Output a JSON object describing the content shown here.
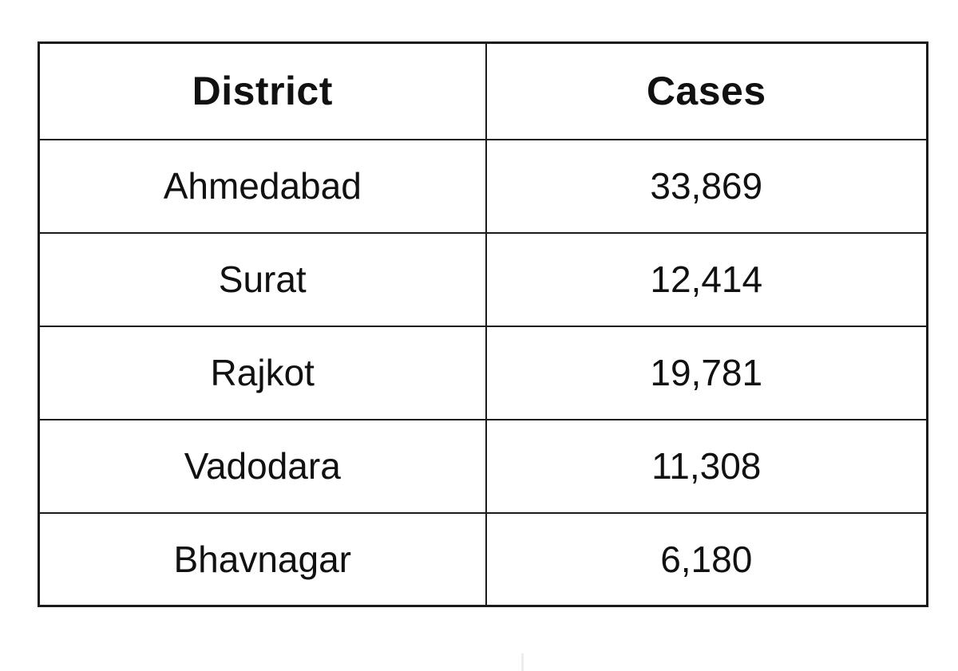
{
  "table": {
    "headers": {
      "district": "District",
      "cases": "Cases"
    },
    "rows": [
      {
        "district": "Ahmedabad",
        "cases": "33,869"
      },
      {
        "district": "Surat",
        "cases": "12,414"
      },
      {
        "district": "Rajkot",
        "cases": "19,781"
      },
      {
        "district": "Vadodara",
        "cases": "11,308"
      },
      {
        "district": "Bhavnagar",
        "cases": "6,180"
      }
    ],
    "style": {
      "border_color": "#1a1a1a",
      "background": "#ffffff",
      "text_color": "#111111"
    }
  },
  "chart_data": {
    "type": "table",
    "title": "",
    "columns": [
      "District",
      "Cases"
    ],
    "categories": [
      "Ahmedabad",
      "Surat",
      "Rajkot",
      "Vadodara",
      "Bhavnagar"
    ],
    "values": [
      33869,
      12414,
      19781,
      11308,
      6180
    ],
    "rows": [
      [
        "Ahmedabad",
        33869
      ],
      [
        "Surat",
        12414
      ],
      [
        "Rajkot",
        19781
      ],
      [
        "Vadodara",
        11308
      ],
      [
        "Bhavnagar",
        6180
      ]
    ]
  }
}
